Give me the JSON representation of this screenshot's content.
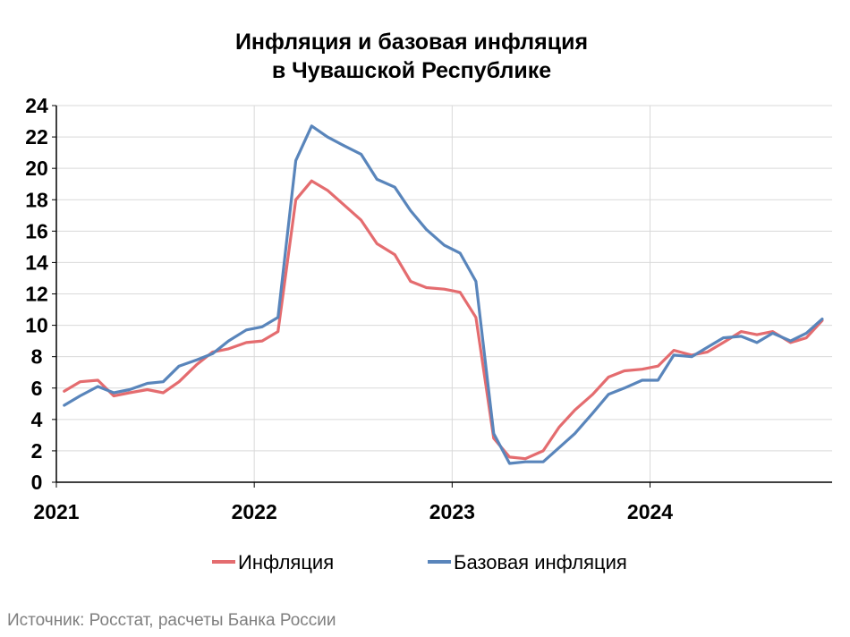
{
  "chart_data": {
    "type": "line",
    "title_lines": [
      "Инфляция и базовая инфляция",
      "в Чувашской Республике"
    ],
    "xlabel": "",
    "ylabel": "",
    "ylim": [
      0,
      24
    ],
    "yticks": [
      0,
      2,
      4,
      6,
      8,
      10,
      12,
      14,
      16,
      18,
      20,
      22,
      24
    ],
    "xlim": [
      2021.0,
      2024.92
    ],
    "x_tick_labels": [
      {
        "x": 2021,
        "label": "2021"
      },
      {
        "x": 2022,
        "label": "2022"
      },
      {
        "x": 2023,
        "label": "2023"
      },
      {
        "x": 2024,
        "label": "2024"
      }
    ],
    "grid": true,
    "legend_position": "bottom",
    "series": [
      {
        "name": "Инфляция",
        "color": "#e46c6f",
        "points": [
          [
            2021.04,
            5.8
          ],
          [
            2021.12,
            6.4
          ],
          [
            2021.21,
            6.5
          ],
          [
            2021.29,
            5.5
          ],
          [
            2021.37,
            5.7
          ],
          [
            2021.46,
            5.9
          ],
          [
            2021.54,
            5.7
          ],
          [
            2021.62,
            6.4
          ],
          [
            2021.71,
            7.5
          ],
          [
            2021.79,
            8.3
          ],
          [
            2021.87,
            8.5
          ],
          [
            2021.96,
            8.9
          ],
          [
            2022.04,
            9.0
          ],
          [
            2022.12,
            9.6
          ],
          [
            2022.21,
            18.0
          ],
          [
            2022.29,
            19.2
          ],
          [
            2022.37,
            18.6
          ],
          [
            2022.46,
            17.6
          ],
          [
            2022.54,
            16.7
          ],
          [
            2022.62,
            15.2
          ],
          [
            2022.71,
            14.5
          ],
          [
            2022.79,
            12.8
          ],
          [
            2022.87,
            12.4
          ],
          [
            2022.96,
            12.3
          ],
          [
            2023.04,
            12.1
          ],
          [
            2023.12,
            10.5
          ],
          [
            2023.21,
            2.8
          ],
          [
            2023.29,
            1.6
          ],
          [
            2023.37,
            1.5
          ],
          [
            2023.46,
            2.0
          ],
          [
            2023.54,
            3.5
          ],
          [
            2023.62,
            4.6
          ],
          [
            2023.71,
            5.6
          ],
          [
            2023.79,
            6.7
          ],
          [
            2023.87,
            7.1
          ],
          [
            2023.96,
            7.2
          ],
          [
            2024.04,
            7.4
          ],
          [
            2024.12,
            8.4
          ],
          [
            2024.21,
            8.1
          ],
          [
            2024.29,
            8.3
          ],
          [
            2024.37,
            8.9
          ],
          [
            2024.46,
            9.6
          ],
          [
            2024.54,
            9.4
          ],
          [
            2024.62,
            9.6
          ],
          [
            2024.71,
            8.9
          ],
          [
            2024.79,
            9.2
          ],
          [
            2024.87,
            10.3
          ]
        ]
      },
      {
        "name": "Базовая инфляция",
        "color": "#5985bb",
        "points": [
          [
            2021.04,
            4.9
          ],
          [
            2021.12,
            5.5
          ],
          [
            2021.21,
            6.1
          ],
          [
            2021.29,
            5.7
          ],
          [
            2021.37,
            5.9
          ],
          [
            2021.46,
            6.3
          ],
          [
            2021.54,
            6.4
          ],
          [
            2021.62,
            7.4
          ],
          [
            2021.71,
            7.8
          ],
          [
            2021.79,
            8.2
          ],
          [
            2021.87,
            9.0
          ],
          [
            2021.96,
            9.7
          ],
          [
            2022.04,
            9.9
          ],
          [
            2022.12,
            10.5
          ],
          [
            2022.21,
            20.5
          ],
          [
            2022.29,
            22.7
          ],
          [
            2022.37,
            22.0
          ],
          [
            2022.46,
            21.4
          ],
          [
            2022.54,
            20.9
          ],
          [
            2022.62,
            19.3
          ],
          [
            2022.71,
            18.8
          ],
          [
            2022.79,
            17.3
          ],
          [
            2022.87,
            16.1
          ],
          [
            2022.96,
            15.1
          ],
          [
            2023.04,
            14.6
          ],
          [
            2023.12,
            12.8
          ],
          [
            2023.21,
            3.1
          ],
          [
            2023.29,
            1.2
          ],
          [
            2023.37,
            1.3
          ],
          [
            2023.46,
            1.3
          ],
          [
            2023.54,
            2.2
          ],
          [
            2023.62,
            3.1
          ],
          [
            2023.71,
            4.4
          ],
          [
            2023.79,
            5.6
          ],
          [
            2023.87,
            6.0
          ],
          [
            2023.96,
            6.5
          ],
          [
            2024.04,
            6.5
          ],
          [
            2024.12,
            8.1
          ],
          [
            2024.21,
            8.0
          ],
          [
            2024.29,
            8.6
          ],
          [
            2024.37,
            9.2
          ],
          [
            2024.46,
            9.3
          ],
          [
            2024.54,
            8.9
          ],
          [
            2024.62,
            9.5
          ],
          [
            2024.71,
            9.0
          ],
          [
            2024.79,
            9.5
          ],
          [
            2024.87,
            10.4
          ]
        ]
      }
    ]
  },
  "source_text": "Источник: Росстат, расчеты Банка России"
}
